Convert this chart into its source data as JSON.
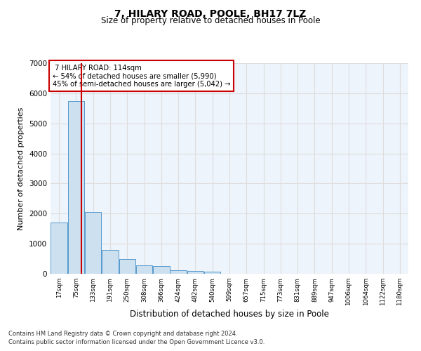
{
  "title1": "7, HILARY ROAD, POOLE, BH17 7LZ",
  "title2": "Size of property relative to detached houses in Poole",
  "xlabel": "Distribution of detached houses by size in Poole",
  "ylabel": "Number of detached properties",
  "property_label": "7 HILARY ROAD: 114sqm",
  "pct_smaller": 54,
  "n_smaller": 5990,
  "pct_larger_semi": 45,
  "n_larger_semi": 5042,
  "bin_labels": [
    "17sqm",
    "75sqm",
    "133sqm",
    "191sqm",
    "250sqm",
    "308sqm",
    "366sqm",
    "424sqm",
    "482sqm",
    "540sqm",
    "599sqm",
    "657sqm",
    "715sqm",
    "773sqm",
    "831sqm",
    "889sqm",
    "947sqm",
    "1006sqm",
    "1064sqm",
    "1122sqm",
    "1180sqm"
  ],
  "bar_values": [
    1700,
    5750,
    2050,
    800,
    500,
    280,
    250,
    115,
    100,
    70,
    10,
    0,
    0,
    0,
    0,
    0,
    0,
    0,
    0,
    0,
    0
  ],
  "bar_color": "#cce0f0",
  "bar_edge_color": "#5599cc",
  "vline_color": "#cc0000",
  "vline_x": 114,
  "annotation_box_color": "#cc0000",
  "ylim": [
    0,
    7000
  ],
  "yticks": [
    0,
    1000,
    2000,
    3000,
    4000,
    5000,
    6000,
    7000
  ],
  "grid_color": "#dddddd",
  "bg_color": "#eef4fb",
  "footer1": "Contains HM Land Registry data © Crown copyright and database right 2024.",
  "footer2": "Contains public sector information licensed under the Open Government Licence v3.0."
}
